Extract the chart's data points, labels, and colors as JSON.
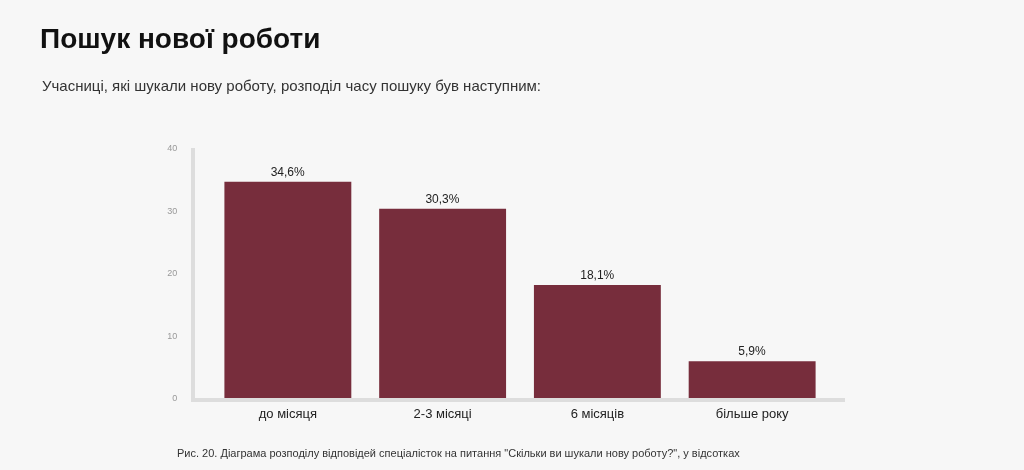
{
  "chart_data": {
    "type": "bar",
    "title": "Пошук нової роботи",
    "subtitle": "Учасниці, які шукали нову роботу, розподіл часу пошуку був наступним:",
    "categories": [
      "до місяця",
      "2-3 місяці",
      "6 місяців",
      "більше року"
    ],
    "values": [
      34.6,
      30.3,
      18.1,
      5.9
    ],
    "color": "#772d3c",
    "value_labels": [
      "34,6%",
      "30,3%",
      "18,1%",
      "5,9%"
    ],
    "ylim": [
      0,
      40
    ],
    "yticks": [
      0,
      10,
      20,
      30,
      40
    ],
    "grid": false,
    "legend": false,
    "annotations": [
      "Рис. 20. Діаграма розподілу відповідей спеціалісток на питання \"Скільки ви шукали нову роботу?\", у відсотках"
    ]
  }
}
